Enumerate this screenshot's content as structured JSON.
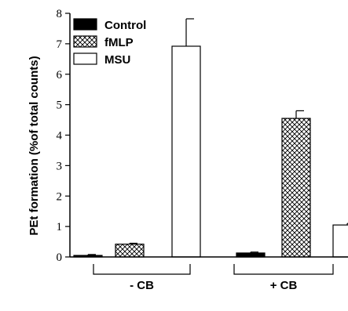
{
  "chart_data": {
    "type": "bar",
    "ylabel": "PEt formation (%of total counts)",
    "ylim": [
      0,
      8
    ],
    "yticks": [
      0,
      1,
      2,
      3,
      4,
      5,
      6,
      7,
      8
    ],
    "groups": [
      "- CB",
      "+ CB"
    ],
    "series": [
      {
        "name": "Control",
        "pattern": "solid",
        "color": "#000000",
        "values": [
          0.05,
          0.13
        ],
        "errors": [
          0.03,
          0.03
        ]
      },
      {
        "name": "fMLP",
        "pattern": "crosshatch",
        "color": "#000000",
        "values": [
          0.42,
          4.55
        ],
        "errors": [
          0.03,
          0.25
        ]
      },
      {
        "name": "MSU",
        "pattern": "open",
        "color": "#000000",
        "values": [
          6.92,
          1.05
        ],
        "errors": [
          0.9,
          0.05
        ]
      }
    ],
    "legend": "top-left",
    "grid": false
  }
}
